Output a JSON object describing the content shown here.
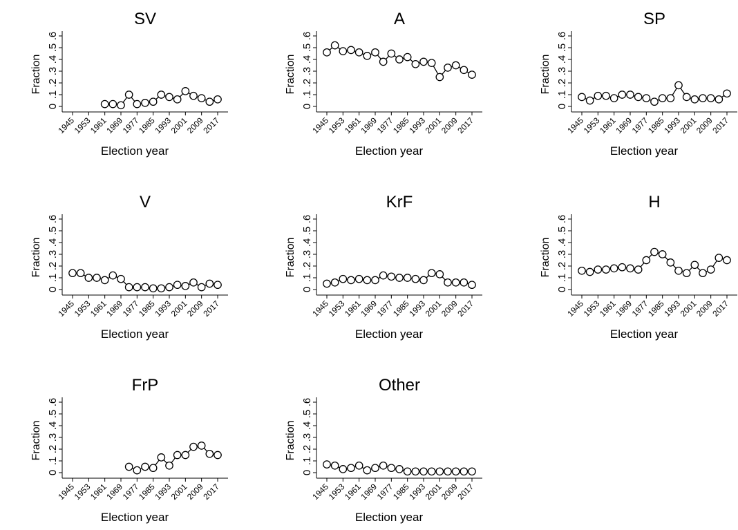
{
  "chart_data": [
    {
      "type": "line",
      "title": "SV",
      "xlabel": "Election year",
      "ylabel": "Fraction",
      "x": [
        1945,
        1949,
        1953,
        1957,
        1961,
        1965,
        1969,
        1973,
        1977,
        1981,
        1985,
        1989,
        1993,
        1997,
        2001,
        2005,
        2009,
        2013,
        2017
      ],
      "xticks": [
        "1945",
        "1953",
        "1961",
        "1969",
        "1977",
        "1985",
        "1993",
        "2001",
        "2009",
        "2017"
      ],
      "yticks": [
        "0",
        ".1",
        ".2",
        ".3",
        ".4",
        ".5",
        ".6"
      ],
      "ylim": [
        0,
        0.6
      ],
      "series": [
        {
          "values": [
            null,
            null,
            null,
            null,
            0.02,
            0.02,
            0.01,
            0.1,
            0.02,
            0.03,
            0.04,
            0.1,
            0.08,
            0.06,
            0.13,
            0.09,
            0.07,
            0.04,
            0.06
          ]
        }
      ]
    },
    {
      "type": "line",
      "title": "A",
      "xlabel": "Election year",
      "ylabel": "Fraction",
      "x": [
        1945,
        1949,
        1953,
        1957,
        1961,
        1965,
        1969,
        1973,
        1977,
        1981,
        1985,
        1989,
        1993,
        1997,
        2001,
        2005,
        2009,
        2013,
        2017
      ],
      "xticks": [
        "1945",
        "1953",
        "1961",
        "1969",
        "1977",
        "1985",
        "1993",
        "2001",
        "2009",
        "2017"
      ],
      "yticks": [
        "0",
        ".1",
        ".2",
        ".3",
        ".4",
        ".5",
        ".6"
      ],
      "ylim": [
        0,
        0.6
      ],
      "series": [
        {
          "values": [
            0.46,
            0.52,
            0.47,
            0.48,
            0.46,
            0.43,
            0.46,
            0.38,
            0.45,
            0.4,
            0.42,
            0.36,
            0.38,
            0.37,
            0.25,
            0.33,
            0.35,
            0.31,
            0.27
          ]
        }
      ]
    },
    {
      "type": "line",
      "title": "SP",
      "xlabel": "Election year",
      "ylabel": "Fraction",
      "x": [
        1945,
        1949,
        1953,
        1957,
        1961,
        1965,
        1969,
        1973,
        1977,
        1981,
        1985,
        1989,
        1993,
        1997,
        2001,
        2005,
        2009,
        2013,
        2017
      ],
      "xticks": [
        "1945",
        "1953",
        "1961",
        "1969",
        "1977",
        "1985",
        "1993",
        "2001",
        "2009",
        "2017"
      ],
      "yticks": [
        "0",
        ".1",
        ".2",
        ".3",
        ".4",
        ".5",
        ".6"
      ],
      "ylim": [
        0,
        0.6
      ],
      "series": [
        {
          "values": [
            0.08,
            0.05,
            0.09,
            0.09,
            0.07,
            0.1,
            0.1,
            0.08,
            0.07,
            0.04,
            0.07,
            0.07,
            0.18,
            0.08,
            0.06,
            0.07,
            0.07,
            0.06,
            0.11
          ]
        }
      ]
    },
    {
      "type": "line",
      "title": "V",
      "xlabel": "Election year",
      "ylabel": "Fraction",
      "x": [
        1945,
        1949,
        1953,
        1957,
        1961,
        1965,
        1969,
        1973,
        1977,
        1981,
        1985,
        1989,
        1993,
        1997,
        2001,
        2005,
        2009,
        2013,
        2017
      ],
      "xticks": [
        "1945",
        "1953",
        "1961",
        "1969",
        "1977",
        "1985",
        "1993",
        "2001",
        "2009",
        "2017"
      ],
      "yticks": [
        "0",
        ".1",
        ".2",
        ".3",
        ".4",
        ".5",
        ".6"
      ],
      "ylim": [
        0,
        0.6
      ],
      "series": [
        {
          "values": [
            0.14,
            0.14,
            0.1,
            0.1,
            0.08,
            0.12,
            0.09,
            0.02,
            0.02,
            0.02,
            0.01,
            0.01,
            0.02,
            0.04,
            0.03,
            0.06,
            0.02,
            0.05,
            0.04
          ]
        }
      ]
    },
    {
      "type": "line",
      "title": "KrF",
      "xlabel": "Election year",
      "ylabel": "Fraction",
      "x": [
        1945,
        1949,
        1953,
        1957,
        1961,
        1965,
        1969,
        1973,
        1977,
        1981,
        1985,
        1989,
        1993,
        1997,
        2001,
        2005,
        2009,
        2013,
        2017
      ],
      "xticks": [
        "1945",
        "1953",
        "1961",
        "1969",
        "1977",
        "1985",
        "1993",
        "2001",
        "2009",
        "2017"
      ],
      "yticks": [
        "0",
        ".1",
        ".2",
        ".3",
        ".4",
        ".5",
        ".6"
      ],
      "ylim": [
        0,
        0.6
      ],
      "series": [
        {
          "values": [
            0.05,
            0.06,
            0.09,
            0.08,
            0.09,
            0.08,
            0.08,
            0.12,
            0.11,
            0.1,
            0.1,
            0.09,
            0.08,
            0.14,
            0.13,
            0.06,
            0.06,
            0.06,
            0.04
          ]
        }
      ]
    },
    {
      "type": "line",
      "title": "H",
      "xlabel": "Election year",
      "ylabel": "Fraction",
      "x": [
        1945,
        1949,
        1953,
        1957,
        1961,
        1965,
        1969,
        1973,
        1977,
        1981,
        1985,
        1989,
        1993,
        1997,
        2001,
        2005,
        2009,
        2013,
        2017
      ],
      "xticks": [
        "1945",
        "1953",
        "1961",
        "1969",
        "1977",
        "1985",
        "1993",
        "2001",
        "2009",
        "2017"
      ],
      "yticks": [
        "0",
        ".1",
        ".2",
        ".3",
        ".4",
        ".5",
        ".6"
      ],
      "ylim": [
        0,
        0.6
      ],
      "series": [
        {
          "values": [
            0.16,
            0.15,
            0.17,
            0.17,
            0.18,
            0.19,
            0.18,
            0.17,
            0.25,
            0.32,
            0.3,
            0.23,
            0.16,
            0.14,
            0.21,
            0.14,
            0.17,
            0.27,
            0.25
          ]
        }
      ]
    },
    {
      "type": "line",
      "title": "FrP",
      "xlabel": "Election year",
      "ylabel": "Fraction",
      "x": [
        1945,
        1949,
        1953,
        1957,
        1961,
        1965,
        1969,
        1973,
        1977,
        1981,
        1985,
        1989,
        1993,
        1997,
        2001,
        2005,
        2009,
        2013,
        2017
      ],
      "xticks": [
        "1945",
        "1953",
        "1961",
        "1969",
        "1977",
        "1985",
        "1993",
        "2001",
        "2009",
        "2017"
      ],
      "yticks": [
        "0",
        ".1",
        ".2",
        ".3",
        ".4",
        ".5",
        ".6"
      ],
      "ylim": [
        0,
        0.6
      ],
      "series": [
        {
          "values": [
            null,
            null,
            null,
            null,
            null,
            null,
            null,
            0.05,
            0.02,
            0.05,
            0.04,
            0.13,
            0.06,
            0.15,
            0.15,
            0.22,
            0.23,
            0.16,
            0.15
          ]
        }
      ]
    },
    {
      "type": "line",
      "title": "Other",
      "xlabel": "Election year",
      "ylabel": "Fraction",
      "x": [
        1945,
        1949,
        1953,
        1957,
        1961,
        1965,
        1969,
        1973,
        1977,
        1981,
        1985,
        1989,
        1993,
        1997,
        2001,
        2005,
        2009,
        2013,
        2017
      ],
      "xticks": [
        "1945",
        "1953",
        "1961",
        "1969",
        "1977",
        "1985",
        "1993",
        "2001",
        "2009",
        "2017"
      ],
      "yticks": [
        "0",
        ".1",
        ".2",
        ".3",
        ".4",
        ".5",
        ".6"
      ],
      "ylim": [
        0,
        0.6
      ],
      "series": [
        {
          "values": [
            0.07,
            0.06,
            0.03,
            0.04,
            0.06,
            0.02,
            0.04,
            0.06,
            0.04,
            0.03,
            0.01,
            0.01,
            0.01,
            0.01,
            0.01,
            0.01,
            0.01,
            0.01,
            0.01
          ]
        }
      ]
    }
  ]
}
